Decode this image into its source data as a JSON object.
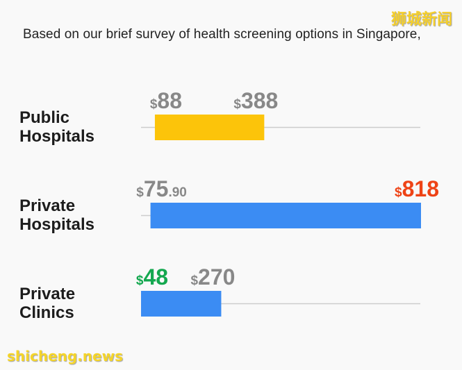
{
  "header": {
    "watermark": "狮城新闻",
    "intro": "Based on our brief survey of health screening options in Singapore,"
  },
  "footer": {
    "watermark": "shicheng.news"
  },
  "chart_data": {
    "type": "bar",
    "orientation": "horizontal-range",
    "currency_symbol": "$",
    "axis_min": 50,
    "axis_max": 818,
    "categories": [
      {
        "label_lines": [
          "Public",
          "Hospitals"
        ],
        "low": 88,
        "low_text": "88",
        "low_decimal": "",
        "high": 388,
        "high_text": "388",
        "high_decimal": "",
        "bar_color": "#fcc40a",
        "low_label_color": "#888888",
        "high_label_color": "#888888"
      },
      {
        "label_lines": [
          "Private",
          "Hospitals"
        ],
        "low": 75.9,
        "low_text": "75",
        "low_decimal": ".90",
        "high": 818,
        "high_text": "818",
        "high_decimal": "",
        "bar_color": "#3b8cf3",
        "low_label_color": "#888888",
        "high_label_color": "#ee4316"
      },
      {
        "label_lines": [
          "Private",
          "Clinics"
        ],
        "low": 48,
        "low_text": "48",
        "low_decimal": "",
        "high": 270,
        "high_text": "270",
        "high_decimal": "",
        "bar_color": "#3b8cf3",
        "low_label_color": "#14a84f",
        "high_label_color": "#888888"
      }
    ],
    "line_color": "#cccccc"
  }
}
